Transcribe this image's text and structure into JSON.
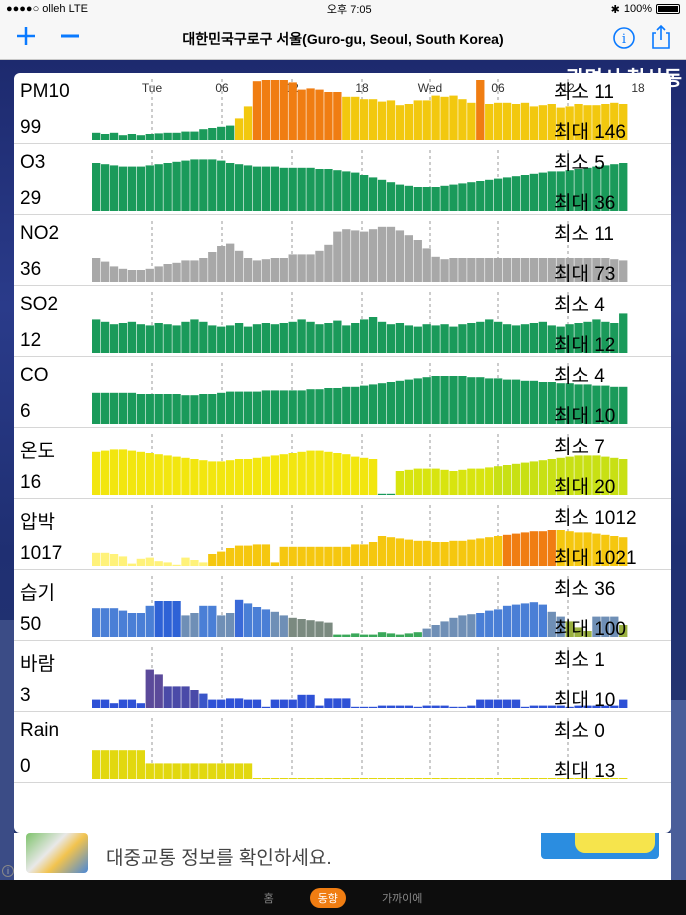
{
  "status": {
    "carrier": "●●●●○ olleh  LTE",
    "time": "오후 7:05",
    "battery": "100%"
  },
  "nav": {
    "title": "대한민국구로구 서울(Guro-gu, Seoul, South Korea)",
    "add_icon": "plus-icon",
    "remove_icon": "minus-icon",
    "info_icon": "info-icon",
    "share_icon": "share-icon"
  },
  "background": {
    "city_label": "광명시 철산동"
  },
  "time_ticks": [
    "Tue",
    "06",
    "12",
    "18",
    "Wed",
    "06",
    "12",
    "18"
  ],
  "rows": [
    {
      "name": "PM10",
      "value": "99",
      "min": "최소 11",
      "max": "최대 146",
      "bars": [
        12,
        10,
        12,
        8,
        10,
        8,
        10,
        11,
        12,
        12,
        14,
        14,
        18,
        20,
        22,
        24,
        36,
        56,
        98,
        100,
        100,
        100,
        96,
        84,
        86,
        84,
        80,
        80,
        72,
        72,
        68,
        68,
        64,
        66,
        58,
        60,
        66,
        66,
        74,
        72,
        74,
        68,
        62,
        100,
        60,
        62,
        62,
        60,
        62,
        56,
        58,
        60,
        54,
        56,
        60,
        58,
        58,
        60,
        62,
        60
      ],
      "colors": [
        "#1a9a5a",
        "#1a9a5a",
        "#1a9a5a",
        "#1a9a5a",
        "#1a9a5a",
        "#1a9a5a",
        "#1a9a5a",
        "#1a9a5a",
        "#1a9a5a",
        "#1a9a5a",
        "#1a9a5a",
        "#1a9a5a",
        "#1a9a5a",
        "#1a9a5a",
        "#1a9a5a",
        "#1a9a5a",
        "#f2c80f",
        "#f2c80f",
        "#f07d12",
        "#f07d12",
        "#f07d12",
        "#f07d12",
        "#f07d12",
        "#f07d12",
        "#f07d12",
        "#f07d12",
        "#f07d12",
        "#f07d12",
        "#f2c80f",
        "#f2c80f",
        "#f2c80f",
        "#f2c80f",
        "#f2c80f",
        "#f2c80f",
        "#f2c80f",
        "#f2c80f",
        "#f2c80f",
        "#f2c80f",
        "#f2c80f",
        "#f2c80f",
        "#f2c80f",
        "#f2c80f",
        "#f2c80f",
        "#f07d12",
        "#f2c80f",
        "#f2c80f",
        "#f2c80f",
        "#f2c80f",
        "#f2c80f",
        "#f2c80f",
        "#f2c80f",
        "#f2c80f",
        "#f2c80f",
        "#f2c80f",
        "#f2c80f",
        "#f2c80f",
        "#f2c80f",
        "#f2c80f",
        "#f2c80f",
        "#f2c80f"
      ]
    },
    {
      "name": "O3",
      "value": "29",
      "min": "최소 5",
      "max": "최대 36",
      "bars": [
        80,
        78,
        76,
        74,
        74,
        74,
        76,
        78,
        80,
        82,
        84,
        86,
        86,
        86,
        84,
        80,
        78,
        76,
        74,
        74,
        74,
        72,
        72,
        72,
        72,
        70,
        70,
        68,
        66,
        64,
        60,
        56,
        52,
        48,
        44,
        42,
        40,
        40,
        40,
        42,
        44,
        46,
        48,
        50,
        52,
        54,
        56,
        58,
        60,
        62,
        64,
        66,
        66,
        68,
        70,
        72,
        74,
        76,
        78,
        80
      ],
      "colors": "#1a9a5a"
    },
    {
      "name": "NO2",
      "value": "36",
      "min": "최소 11",
      "max": "최대 73",
      "bars": [
        40,
        34,
        26,
        22,
        20,
        20,
        22,
        26,
        30,
        32,
        36,
        36,
        40,
        50,
        60,
        64,
        52,
        40,
        36,
        38,
        40,
        40,
        46,
        46,
        46,
        52,
        62,
        84,
        88,
        86,
        84,
        88,
        92,
        92,
        86,
        78,
        70,
        56,
        42,
        38,
        40,
        40,
        40,
        40,
        40,
        40,
        40,
        40,
        40,
        40,
        40,
        40,
        40,
        40,
        40,
        40,
        40,
        40,
        38,
        36
      ],
      "colors": "#a8a8a8"
    },
    {
      "name": "SO2",
      "value": "12",
      "min": "최소 4",
      "max": "최대 12",
      "bars": [
        56,
        52,
        48,
        50,
        52,
        48,
        46,
        50,
        48,
        46,
        52,
        56,
        52,
        46,
        44,
        46,
        50,
        44,
        48,
        50,
        48,
        50,
        52,
        56,
        52,
        48,
        50,
        54,
        46,
        50,
        56,
        60,
        52,
        48,
        50,
        46,
        44,
        48,
        46,
        48,
        44,
        48,
        50,
        52,
        56,
        52,
        48,
        46,
        48,
        50,
        52,
        46,
        44,
        48,
        50,
        52,
        56,
        52,
        50,
        66
      ],
      "colors": "#1a9a5a"
    },
    {
      "name": "CO",
      "value": "6",
      "min": "최소 4",
      "max": "최대 10",
      "bars": [
        52,
        52,
        52,
        52,
        52,
        50,
        50,
        50,
        50,
        50,
        48,
        48,
        50,
        50,
        52,
        54,
        54,
        54,
        54,
        56,
        56,
        56,
        56,
        56,
        58,
        58,
        60,
        60,
        62,
        62,
        64,
        66,
        68,
        70,
        72,
        74,
        76,
        78,
        80,
        80,
        80,
        80,
        78,
        78,
        76,
        76,
        74,
        74,
        72,
        72,
        70,
        70,
        68,
        68,
        66,
        66,
        64,
        64,
        62,
        62
      ],
      "colors": "#1a9a5a"
    },
    {
      "name": "온도",
      "value": "16",
      "min": "최소 7",
      "max": "최대 20",
      "bars": [
        72,
        74,
        76,
        76,
        74,
        72,
        70,
        68,
        66,
        64,
        62,
        60,
        58,
        56,
        56,
        58,
        60,
        60,
        62,
        64,
        66,
        68,
        70,
        72,
        74,
        74,
        72,
        70,
        68,
        64,
        62,
        60,
        2,
        2,
        40,
        42,
        44,
        44,
        44,
        42,
        40,
        42,
        44,
        44,
        46,
        48,
        50,
        52,
        54,
        56,
        58,
        60,
        62,
        64,
        66,
        66,
        66,
        64,
        62,
        60
      ],
      "colors": [
        "#f2e60f",
        "#f2e60f",
        "#f2e60f",
        "#f2e60f",
        "#f2e60f",
        "#f2e60f",
        "#f2e60f",
        "#f2e60f",
        "#f2e60f",
        "#f2e60f",
        "#f2e60f",
        "#f2e60f",
        "#f2e60f",
        "#f2e60f",
        "#f2e60f",
        "#f2e60f",
        "#f2e60f",
        "#f2e60f",
        "#f2e60f",
        "#f2e60f",
        "#f2e60f",
        "#f2e60f",
        "#f2e60f",
        "#f2e60f",
        "#f2e60f",
        "#f2e60f",
        "#f2e60f",
        "#f2e60f",
        "#f2e60f",
        "#f2e60f",
        "#f2e60f",
        "#f2e60f",
        "#1a9a5a",
        "#1a9a5a",
        "#d8e40f",
        "#d8e40f",
        "#d8e40f",
        "#d8e40f",
        "#d8e40f",
        "#d8e40f",
        "#d8e40f",
        "#d8e40f",
        "#d8e40f",
        "#d8e40f",
        "#d8e40f",
        "#c8e014",
        "#c8e014",
        "#c8e014",
        "#c8e014",
        "#c8e014",
        "#c8e014",
        "#c8e014",
        "#c8e014",
        "#c8e014",
        "#c8e014",
        "#c8e014",
        "#c8e014",
        "#c8e014",
        "#c8e014",
        "#c8e014"
      ]
    },
    {
      "name": "압박",
      "value": "1017",
      "min": "최소 1012",
      "max": "최대 1021",
      "bars": [
        22,
        22,
        20,
        16,
        4,
        12,
        14,
        8,
        6,
        2,
        14,
        10,
        6,
        20,
        24,
        30,
        34,
        34,
        36,
        36,
        6,
        32,
        32,
        32,
        32,
        32,
        32,
        32,
        32,
        36,
        36,
        40,
        50,
        48,
        46,
        44,
        42,
        42,
        40,
        40,
        42,
        42,
        44,
        46,
        48,
        50,
        52,
        54,
        56,
        58,
        58,
        60,
        60,
        58,
        56,
        56,
        54,
        52,
        50,
        48
      ],
      "colors": [
        "#fff27a",
        "#fff27a",
        "#fff27a",
        "#fff27a",
        "#fff27a",
        "#fff27a",
        "#fff27a",
        "#fff27a",
        "#fff27a",
        "#fff27a",
        "#fff27a",
        "#fff27a",
        "#fff27a",
        "#f5c70f",
        "#f5c70f",
        "#f5c70f",
        "#f5c70f",
        "#f5c70f",
        "#f5c70f",
        "#f5c70f",
        "#f5c70f",
        "#f5c70f",
        "#f5c70f",
        "#f5c70f",
        "#f5c70f",
        "#f5c70f",
        "#f5c70f",
        "#f5c70f",
        "#f5c70f",
        "#f5c70f",
        "#f5c70f",
        "#f5c70f",
        "#f5c70f",
        "#f5c70f",
        "#f5c70f",
        "#f5c70f",
        "#f5c70f",
        "#f5c70f",
        "#f5c70f",
        "#f5c70f",
        "#f5c70f",
        "#f5c70f",
        "#f5c70f",
        "#f5c70f",
        "#f5c70f",
        "#f5c70f",
        "#f07d12",
        "#f07d12",
        "#f07d12",
        "#f07d12",
        "#f07d12",
        "#f07d12",
        "#f5c70f",
        "#f5c70f",
        "#f5c70f",
        "#f5c70f",
        "#f5c70f",
        "#f5c70f",
        "#f5c70f",
        "#f5c70f"
      ]
    },
    {
      "name": "습기",
      "value": "50",
      "min": "최소 36",
      "max": "최대 100",
      "bars": [
        48,
        48,
        48,
        44,
        40,
        40,
        52,
        60,
        60,
        60,
        36,
        40,
        52,
        52,
        36,
        40,
        62,
        56,
        50,
        46,
        42,
        36,
        32,
        30,
        28,
        26,
        24,
        4,
        4,
        6,
        4,
        4,
        8,
        6,
        4,
        6,
        8,
        14,
        20,
        26,
        32,
        36,
        38,
        40,
        44,
        46,
        52,
        54,
        56,
        58,
        54,
        42,
        34,
        26,
        16,
        10,
        34,
        34,
        34,
        20
      ],
      "colors": [
        "#4a7fd6",
        "#4a7fd6",
        "#4a7fd6",
        "#4a7fd6",
        "#4a7fd6",
        "#4a7fd6",
        "#4a7fd6",
        "#2e62d6",
        "#2e62d6",
        "#2e62d6",
        "#6f8fb6",
        "#6f8fb6",
        "#4a7fd6",
        "#4a7fd6",
        "#6f8fb6",
        "#6f8fb6",
        "#3a6ad8",
        "#4a7fd6",
        "#4a7fd6",
        "#4a7fd6",
        "#6f8fb6",
        "#6f8fb6",
        "#7b8a80",
        "#7b8a80",
        "#7b8a80",
        "#7b8a80",
        "#7b8a80",
        "#3aa85a",
        "#3aa85a",
        "#3aa85a",
        "#3aa85a",
        "#3aa85a",
        "#3aa85a",
        "#3aa85a",
        "#3aa85a",
        "#3aa85a",
        "#3aa85a",
        "#6f8fb6",
        "#6f8fb6",
        "#6f8fb6",
        "#6f8fb6",
        "#6f8fb6",
        "#6f8fb6",
        "#4a7fd6",
        "#4a7fd6",
        "#4a7fd6",
        "#4a7fd6",
        "#4a7fd6",
        "#4a7fd6",
        "#4a7fd6",
        "#4a7fd6",
        "#6f8fb6",
        "#6f8fb6",
        "#9ab040",
        "#9ab040",
        "#9ab040",
        "#6f8fb6",
        "#6f8fb6",
        "#6f8fb6",
        "#9ab040"
      ]
    },
    {
      "name": "바람",
      "value": "3",
      "min": "최소 1",
      "max": "최대 10",
      "bars": [
        14,
        14,
        8,
        14,
        14,
        8,
        64,
        56,
        36,
        36,
        36,
        30,
        24,
        14,
        14,
        16,
        16,
        14,
        14,
        2,
        14,
        14,
        14,
        22,
        22,
        4,
        16,
        16,
        16,
        2,
        2,
        2,
        4,
        4,
        4,
        4,
        2,
        4,
        4,
        4,
        2,
        2,
        4,
        14,
        14,
        14,
        14,
        14,
        2,
        4,
        4,
        4,
        4,
        2,
        4,
        4,
        4,
        4,
        4,
        14
      ],
      "colors": [
        "#2e51d6",
        "#2e51d6",
        "#2e51d6",
        "#2e51d6",
        "#2e51d6",
        "#2e51d6",
        "#5b4a9a",
        "#5b4a9a",
        "#4a4aa8",
        "#4a4aa8",
        "#4a4aa8",
        "#4a4aa8",
        "#3a56c8",
        "#2e51d6",
        "#2e51d6",
        "#2e51d6",
        "#2e51d6",
        "#2e51d6",
        "#2e51d6",
        "#2e51d6",
        "#2e51d6",
        "#2e51d6",
        "#2e51d6",
        "#2e51d6",
        "#2e51d6",
        "#2e51d6",
        "#2e51d6",
        "#2e51d6",
        "#2e51d6",
        "#2e51d6",
        "#2e51d6",
        "#2e51d6",
        "#2e51d6",
        "#2e51d6",
        "#2e51d6",
        "#2e51d6",
        "#2e51d6",
        "#2e51d6",
        "#2e51d6",
        "#2e51d6",
        "#2e51d6",
        "#2e51d6",
        "#2e51d6",
        "#2e51d6",
        "#2e51d6",
        "#2e51d6",
        "#2e51d6",
        "#2e51d6",
        "#2e51d6",
        "#2e51d6",
        "#2e51d6",
        "#2e51d6",
        "#2e51d6",
        "#2e51d6",
        "#2e51d6",
        "#2e51d6",
        "#2e51d6",
        "#2e51d6",
        "#2e51d6",
        "#2e51d6"
      ]
    },
    {
      "name": "Rain",
      "value": "0",
      "min": "최소 0",
      "max": "최대 13",
      "bars": [
        48,
        48,
        48,
        48,
        48,
        48,
        26,
        26,
        26,
        26,
        26,
        26,
        26,
        26,
        26,
        26,
        26,
        26,
        1,
        1,
        1,
        1,
        1,
        1,
        1,
        1,
        1,
        1,
        1,
        1,
        1,
        1,
        1,
        1,
        1,
        1,
        1,
        1,
        1,
        1,
        1,
        1,
        1,
        1,
        1,
        1,
        1,
        1,
        1,
        1,
        1,
        1,
        1,
        1,
        1,
        1,
        1,
        1,
        1,
        1
      ],
      "colors": "#e2d80f"
    }
  ],
  "ad": {
    "text": "대중교통 정보를 확인하세요."
  },
  "tabs": [
    {
      "label": "홈",
      "active": false
    },
    {
      "label": "동향",
      "active": true
    },
    {
      "label": "가까이에",
      "active": false
    }
  ]
}
